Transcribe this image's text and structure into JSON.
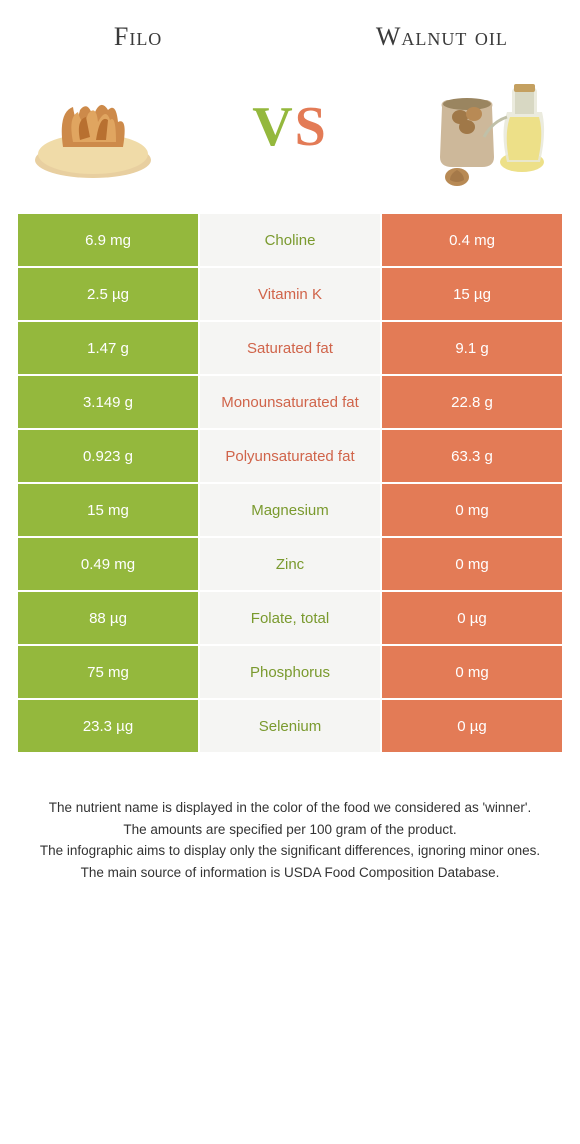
{
  "leftFood": {
    "title": "Filo"
  },
  "rightFood": {
    "title": "Walnut oil"
  },
  "vs": {
    "v": "V",
    "s": "S"
  },
  "colors": {
    "left": "#94b83d",
    "right": "#e37b56",
    "midBg": "#f5f5f3",
    "midTextGreen": "#7a9a2e",
    "midTextOrange": "#d0644a"
  },
  "rows": [
    {
      "left": "6.9 mg",
      "label": "Choline",
      "right": "0.4 mg",
      "winner": "left"
    },
    {
      "left": "2.5 µg",
      "label": "Vitamin K",
      "right": "15 µg",
      "winner": "right"
    },
    {
      "left": "1.47 g",
      "label": "Saturated fat",
      "right": "9.1 g",
      "winner": "right"
    },
    {
      "left": "3.149 g",
      "label": "Monounsaturated fat",
      "right": "22.8 g",
      "winner": "right"
    },
    {
      "left": "0.923 g",
      "label": "Polyunsaturated fat",
      "right": "63.3 g",
      "winner": "right"
    },
    {
      "left": "15 mg",
      "label": "Magnesium",
      "right": "0 mg",
      "winner": "left"
    },
    {
      "left": "0.49 mg",
      "label": "Zinc",
      "right": "0 mg",
      "winner": "left"
    },
    {
      "left": "88 µg",
      "label": "Folate, total",
      "right": "0 µg",
      "winner": "left"
    },
    {
      "left": "75 mg",
      "label": "Phosphorus",
      "right": "0 mg",
      "winner": "left"
    },
    {
      "left": "23.3 µg",
      "label": "Selenium",
      "right": "0 µg",
      "winner": "left"
    }
  ],
  "footer": [
    "The nutrient name is displayed in the color of the food we considered as 'winner'.",
    "The amounts are specified per 100 gram of the product.",
    "The infographic aims to display only the significant differences, ignoring minor ones.",
    "The main source of information is USDA Food Composition Database."
  ]
}
